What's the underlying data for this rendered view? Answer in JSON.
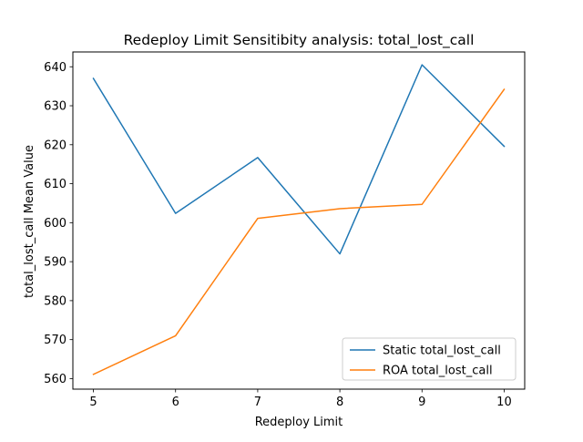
{
  "chart_data": {
    "type": "line",
    "title": "Redeploy Limit Sensitibity analysis: total_lost_call",
    "xlabel": "Redeploy Limit",
    "ylabel": "total_lost_call Mean Value",
    "x": [
      5,
      6,
      7,
      8,
      9,
      10
    ],
    "xlim": [
      4.75,
      10.25
    ],
    "ylim": [
      557.3,
      643.8
    ],
    "xticks": [
      5,
      6,
      7,
      8,
      9,
      10
    ],
    "yticks": [
      560,
      570,
      580,
      590,
      600,
      610,
      620,
      630,
      640
    ],
    "grid": false,
    "legend_position": "lower-right",
    "series": [
      {
        "name": "Static total_lost_call",
        "color": "#1f77b4",
        "values": [
          637.0,
          602.4,
          616.7,
          592.0,
          640.5,
          619.6
        ]
      },
      {
        "name": "ROA total_lost_call",
        "color": "#ff7f0e",
        "values": [
          561.1,
          571.0,
          601.1,
          603.6,
          604.7,
          634.2
        ]
      }
    ]
  }
}
